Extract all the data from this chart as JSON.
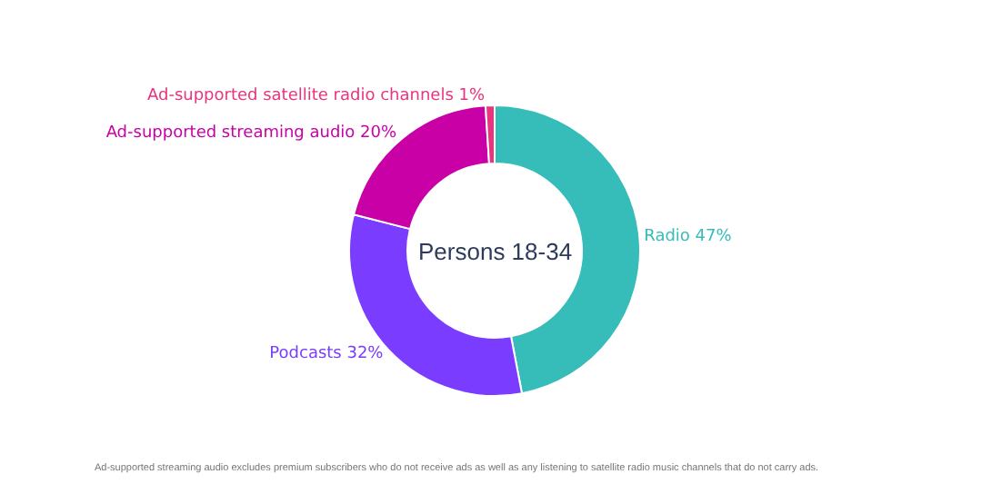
{
  "chart_data": {
    "type": "donut",
    "title": "Persons 18-34",
    "categories": [
      "Radio",
      "Podcasts",
      "Ad-supported streaming audio",
      "Ad-supported satellite radio channels"
    ],
    "values": [
      47,
      32,
      20,
      1
    ],
    "value_labels": [
      "47%",
      "32%",
      "20%",
      "1%"
    ],
    "colors": [
      "#36bcb9",
      "#7a3cff",
      "#c800a6",
      "#e8357f"
    ],
    "legend": false,
    "annotations": [
      "Ad-supported streaming audio excludes premium subscribers who do not receive ads as well as any listening to satellite radio music channels that do not carry ads."
    ]
  }
}
